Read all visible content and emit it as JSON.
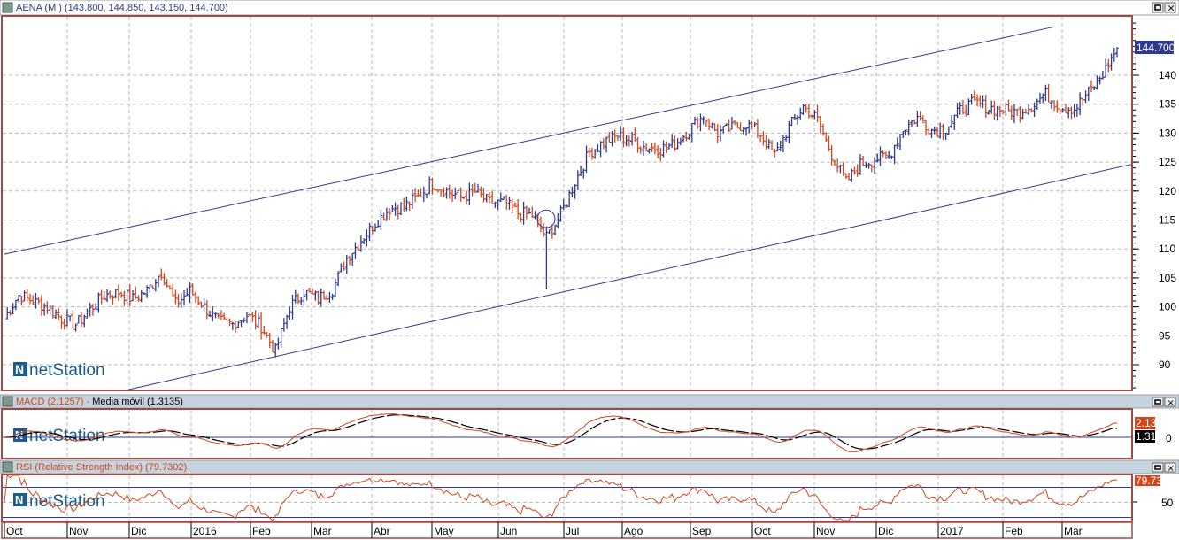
{
  "main_panel": {
    "title": "AENA (M ) (143.800, 144.850, 143.150, 144.700)",
    "last_price_label": "144.700",
    "watermark": "netStation",
    "y_ticks": [
      "90",
      "95",
      "100",
      "105",
      "110",
      "115",
      "120",
      "125",
      "130",
      "135",
      "140"
    ]
  },
  "macd_panel": {
    "title_macd": "MACD (2.1257)",
    "title_sep": " - ",
    "title_signal": "Media móvil (1.3135)",
    "macd_label": "2.13",
    "signal_label": "1.31",
    "zero_tick": "0",
    "watermark": "netStation"
  },
  "rsi_panel": {
    "title": "RSI (Relative Strength Index) (79.7302)",
    "value_label": "79.73",
    "tick_50": "50",
    "watermark": "netStation",
    "levels": [
      30,
      70
    ]
  },
  "x_axis": {
    "labels": [
      "Oct",
      "Nov",
      "Dic",
      "2016",
      "Feb",
      "Mar",
      "Abr",
      "May",
      "Jun",
      "Jul",
      "Ago",
      "Sep",
      "Oct",
      "Nov",
      "Dic",
      "2017",
      "Feb",
      "Mar"
    ]
  },
  "colors": {
    "up_bar": "#2e3a8c",
    "down_bar": "#d2461e",
    "frame": "#9c4a4a",
    "header_bg": "#c5d3de",
    "price_label_bg": "#2e3a8c",
    "macd_line": "#d2461e",
    "signal_line": "#000000",
    "channel": "#2e3a8c"
  },
  "chart_data": {
    "type": "ohlc",
    "frequency": "weekly (approx. closes)",
    "x_range": [
      "Oct 2015",
      "Mar 2017"
    ],
    "ylim": [
      86,
      150
    ],
    "grid": true,
    "closes": [
      98,
      102,
      101,
      100,
      98,
      97,
      99.5,
      102,
      102.5,
      101.3,
      102.8,
      106,
      100.5,
      102.7,
      100,
      97.5,
      97,
      98.6,
      96.6,
      92.3,
      100,
      102.6,
      101.4,
      103,
      108.4,
      111.6,
      114.5,
      117,
      117.3,
      119,
      121.4,
      120,
      119,
      119.8,
      118,
      118,
      116.2,
      115.8,
      112,
      116,
      121.6,
      126.7,
      128.4,
      129.5,
      128.8,
      127.5,
      127.3,
      128.1,
      130.7,
      133,
      130,
      130.8,
      131.6,
      129.8,
      126.1,
      131,
      134.6,
      132.3,
      126.3,
      121.5,
      124.6,
      125.5,
      126,
      130.7,
      132.7,
      130.6,
      130.9,
      133.9,
      135.3,
      134.4,
      134,
      133.6,
      134.7,
      136.8,
      134.5,
      134.2,
      137,
      140.2,
      144.7
    ],
    "last_bar": {
      "open": 143.8,
      "high": 144.85,
      "low": 143.15,
      "close": 144.7
    },
    "trendlines": [
      {
        "name": "upper-channel",
        "from": [
          "Oct 2015",
          109.1
        ],
        "to": [
          "Mar 2017",
          148.4
        ]
      },
      {
        "name": "lower-channel",
        "from": [
          "Nov 2015",
          85.7
        ],
        "to": [
          "Mar 2017",
          124.6
        ]
      }
    ],
    "annotation_circle": {
      "date": "Jun 2016",
      "price": 115.2
    },
    "indicators": {
      "macd_last": 2.1257,
      "signal_last": 1.3135,
      "rsi_last": 79.7302
    }
  }
}
